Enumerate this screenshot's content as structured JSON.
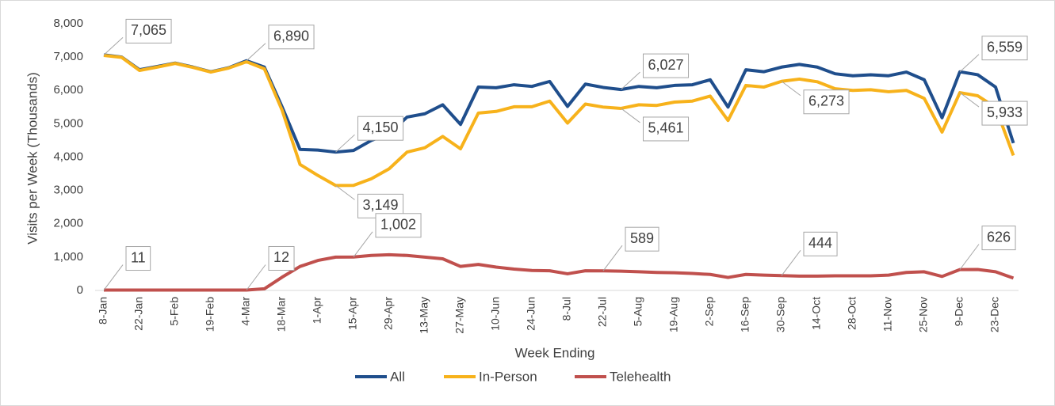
{
  "chart_data": {
    "type": "line",
    "y_label": "Visits per Week (Thousands)",
    "x_label": "Week Ending",
    "categories": [
      "8-Jan",
      null,
      "22-Jan",
      null,
      "5-Feb",
      null,
      "19-Feb",
      null,
      "4-Mar",
      null,
      "18-Mar",
      null,
      "1-Apr",
      null,
      "15-Apr",
      null,
      "29-Apr",
      null,
      "13-May",
      null,
      "27-May",
      null,
      "10-Jun",
      null,
      "24-Jun",
      null,
      "8-Jul",
      null,
      "22-Jul",
      null,
      "5-Aug",
      null,
      "19-Aug",
      null,
      "2-Sep",
      null,
      "16-Sep",
      null,
      "30-Sep",
      null,
      "14-Oct",
      null,
      "28-Oct",
      null,
      "11-Nov",
      null,
      "25-Nov",
      null,
      "9-Dec",
      null,
      "23-Dec",
      null
    ],
    "series": [
      {
        "name": "All",
        "color": "#1f4e8c",
        "values": [
          7065,
          7000,
          6620,
          6720,
          6820,
          6700,
          6560,
          6680,
          6890,
          6700,
          5500,
          4230,
          4210,
          4150,
          4200,
          4500,
          4700,
          5200,
          5300,
          5570,
          4980,
          6100,
          6080,
          6170,
          6120,
          6270,
          5520,
          6190,
          6090,
          6027,
          6120,
          6080,
          6150,
          6170,
          6320,
          5500,
          6620,
          6560,
          6700,
          6780,
          6700,
          6500,
          6440,
          6470,
          6440,
          6550,
          6320,
          5180,
          6559,
          6470,
          6100,
          4420
        ],
        "value_labels": [
          "7,065",
          null,
          null,
          null,
          null,
          null,
          null,
          null,
          "6,890",
          null,
          null,
          null,
          null,
          "4,150",
          null,
          null,
          null,
          null,
          null,
          null,
          null,
          null,
          null,
          null,
          null,
          null,
          null,
          null,
          null,
          "6,027",
          null,
          null,
          null,
          null,
          null,
          null,
          null,
          null,
          null,
          null,
          null,
          null,
          null,
          null,
          null,
          null,
          null,
          null,
          "6,559",
          null,
          null,
          null
        ]
      },
      {
        "name": "In-Person",
        "color": "#f7b21b",
        "values": [
          7050,
          6990,
          6600,
          6700,
          6810,
          6690,
          6550,
          6670,
          6860,
          6650,
          5400,
          3780,
          3450,
          3149,
          3150,
          3350,
          3650,
          4150,
          4280,
          4620,
          4250,
          5320,
          5370,
          5510,
          5510,
          5680,
          5020,
          5590,
          5500,
          5461,
          5570,
          5550,
          5650,
          5680,
          5830,
          5100,
          6150,
          6100,
          6273,
          6340,
          6260,
          6050,
          6000,
          6020,
          5960,
          6000,
          5760,
          4750,
          5933,
          5840,
          5490,
          4050
        ],
        "value_labels": [
          null,
          null,
          null,
          null,
          null,
          null,
          null,
          null,
          null,
          null,
          null,
          null,
          null,
          "3,149",
          null,
          null,
          null,
          null,
          null,
          null,
          null,
          null,
          null,
          null,
          null,
          null,
          null,
          null,
          null,
          "5,461",
          null,
          null,
          null,
          null,
          null,
          null,
          null,
          null,
          "6,273",
          null,
          null,
          null,
          null,
          null,
          null,
          null,
          null,
          null,
          "5,933",
          null,
          null,
          null
        ]
      },
      {
        "name": "Telehealth",
        "color": "#c0504d",
        "values": [
          11,
          11,
          11,
          11,
          11,
          11,
          11,
          11,
          12,
          50,
          400,
          720,
          900,
          1000,
          1002,
          1050,
          1070,
          1050,
          1000,
          950,
          720,
          780,
          700,
          640,
          600,
          590,
          500,
          590,
          589,
          580,
          560,
          540,
          530,
          510,
          480,
          390,
          480,
          460,
          444,
          430,
          430,
          440,
          440,
          440,
          460,
          540,
          560,
          420,
          626,
          630,
          560,
          370
        ],
        "value_labels": [
          "11",
          null,
          null,
          null,
          null,
          null,
          null,
          null,
          "12",
          null,
          null,
          null,
          null,
          null,
          "1,002",
          null,
          null,
          null,
          null,
          null,
          null,
          null,
          null,
          null,
          null,
          null,
          null,
          null,
          "589",
          null,
          null,
          null,
          null,
          null,
          null,
          null,
          null,
          null,
          "444",
          null,
          null,
          null,
          null,
          null,
          null,
          null,
          null,
          null,
          "626",
          null,
          null,
          null
        ]
      }
    ],
    "ylim": [
      0,
      8000
    ],
    "yticks": [
      0,
      {
        "value": 1000,
        "label": "1,000"
      },
      {
        "value": 2000,
        "label": "2,000"
      },
      {
        "value": 3000,
        "label": "3,000"
      },
      {
        "value": 4000,
        "label": "4,000"
      },
      {
        "value": 5000,
        "label": "5,000"
      },
      {
        "value": 6000,
        "label": "6,000"
      },
      {
        "value": 7000,
        "label": "7,000"
      },
      {
        "value": 8000,
        "label": "8,000"
      }
    ],
    "grid": false,
    "legend": "bottom"
  }
}
